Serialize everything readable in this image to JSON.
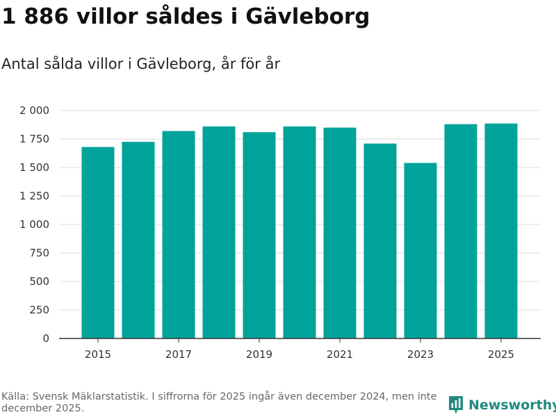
{
  "header": {
    "title": "1 886 villor såldes i Gävleborg",
    "subtitle": "Antal sålda villor i Gävleborg, år för år"
  },
  "chart_data": {
    "type": "bar",
    "title": "1 886 villor såldes i Gävleborg",
    "subtitle": "Antal sålda villor i Gävleborg, år för år",
    "categories": [
      "2015",
      "2016",
      "2017",
      "2018",
      "2019",
      "2020",
      "2021",
      "2022",
      "2023",
      "2024",
      "2025"
    ],
    "values": [
      1680,
      1725,
      1820,
      1860,
      1810,
      1860,
      1850,
      1710,
      1540,
      1880,
      1886
    ],
    "x_tick_labels": [
      "2015",
      "2017",
      "2019",
      "2021",
      "2023",
      "2025"
    ],
    "y_ticks": [
      0,
      250,
      500,
      750,
      1000,
      1250,
      1500,
      1750,
      2000
    ],
    "y_tick_labels": [
      "0",
      "250",
      "500",
      "750",
      "1 000",
      "1 250",
      "1 500",
      "1 750",
      "2 000"
    ],
    "ylim": [
      0,
      2000
    ],
    "xlabel": "",
    "ylabel": "",
    "grid": true,
    "bar_color": "#00a39a",
    "grid_color": "#dddddd",
    "axis_color": "#333333"
  },
  "footer": {
    "source": "Källa: Svensk Mäklarstatistik. I siffrorna för 2025 ingår även december 2024, men inte december 2025.",
    "brand": "Newsworthy",
    "brand_color": "#1f8b80"
  }
}
